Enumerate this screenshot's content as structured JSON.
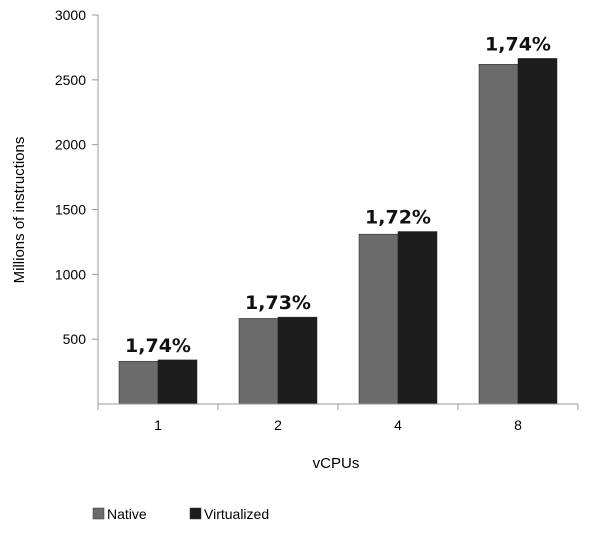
{
  "chart_data": {
    "type": "bar",
    "title": "",
    "xlabel": "vCPUs",
    "ylabel": "Millions of instructions",
    "categories": [
      "1",
      "2",
      "4",
      "8"
    ],
    "ylim": [
      0,
      3000
    ],
    "yticks": [
      "500",
      "1000",
      "1500",
      "2000",
      "2500",
      "3000"
    ],
    "grid": false,
    "legend_position": "bottom-left",
    "series": [
      {
        "name": "Native",
        "color": "#6b6b6b",
        "values": [
          330,
          660,
          1310,
          2620
        ]
      },
      {
        "name": "Virtualized",
        "color": "#1c1c1c",
        "values": [
          340,
          670,
          1330,
          2665
        ]
      }
    ],
    "annotations": [
      "1,74%",
      "1,73%",
      "1,72%",
      "1,74%"
    ]
  }
}
